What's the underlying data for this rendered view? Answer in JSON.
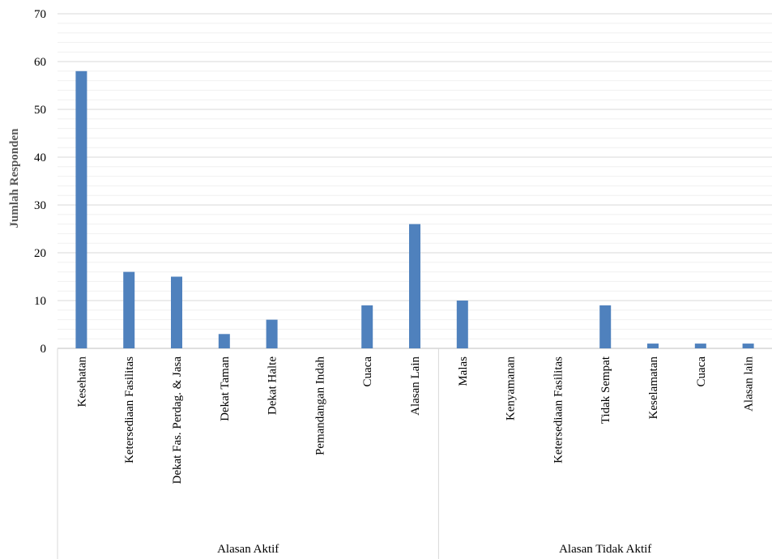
{
  "chart_data": {
    "type": "bar",
    "ylabel": "Jumlah Responden",
    "xlabel": "",
    "ylim": [
      0,
      70
    ],
    "y_ticks": [
      "0",
      "10",
      "20",
      "30",
      "40",
      "50",
      "60",
      "70"
    ],
    "grid": "horizontal",
    "bar_color": "#4f81bd",
    "groups": [
      {
        "name": "Alasan Aktif",
        "categories": [
          "Kesehatan",
          "Ketersediaan Fasilitas",
          "Dekat Fas. Perdag. & Jasa",
          "Dekat Taman",
          "Dekat Halte",
          "Pemandangan Indah",
          "Cuaca",
          "Alasan Lain"
        ],
        "values": [
          58,
          16,
          15,
          3,
          6,
          0,
          9,
          26
        ]
      },
      {
        "name": "Alasan Tidak Aktif",
        "categories": [
          "Malas",
          "Kenyamanan",
          "Ketersediaan Fasilitas",
          "Tidak Sempat",
          "Keselamatan",
          "Cuaca",
          "Alasan lain"
        ],
        "values": [
          10,
          0,
          0,
          9,
          1,
          1,
          1
        ]
      }
    ]
  }
}
